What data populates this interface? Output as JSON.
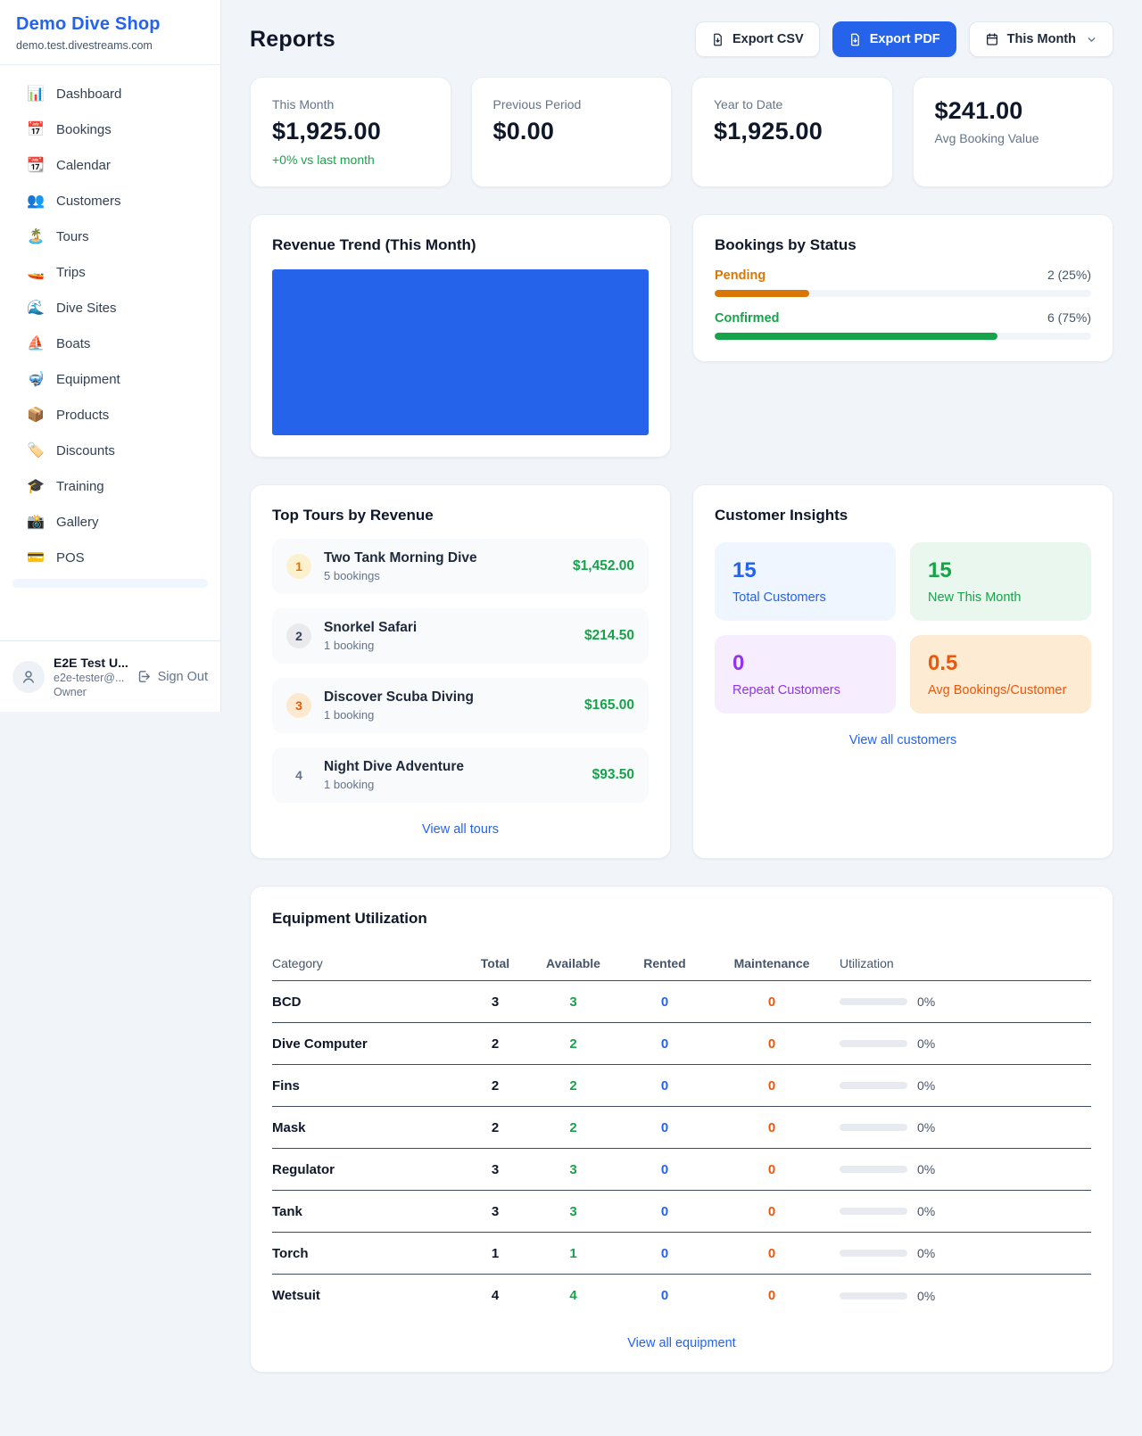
{
  "colors": {
    "accent_blue": "#2563eb",
    "green": "#16a34a",
    "amber": "#d97706",
    "orange": "#ea580c",
    "purple": "#9333ea",
    "page_bg": "#f1f5f9"
  },
  "icons": {
    "export_file": "file-download-icon",
    "period": "calendar-icon",
    "period_chevron": "chevron-down-icon",
    "avatar": "person-icon",
    "signout": "logout-icon"
  },
  "sidebar": {
    "brand": {
      "name": "Demo Dive Shop",
      "domain": "demo.test.divestreams.com"
    },
    "nav": [
      {
        "icon": "📊",
        "label": "Dashboard"
      },
      {
        "icon": "📅",
        "label": "Bookings"
      },
      {
        "icon": "📆",
        "label": "Calendar"
      },
      {
        "icon": "👥",
        "label": "Customers"
      },
      {
        "icon": "🏝️",
        "label": "Tours"
      },
      {
        "icon": "🚤",
        "label": "Trips"
      },
      {
        "icon": "🌊",
        "label": "Dive Sites"
      },
      {
        "icon": "⛵",
        "label": "Boats"
      },
      {
        "icon": "🤿",
        "label": "Equipment"
      },
      {
        "icon": "📦",
        "label": "Products"
      },
      {
        "icon": "🏷️",
        "label": "Discounts"
      },
      {
        "icon": "🎓",
        "label": "Training"
      },
      {
        "icon": "📸",
        "label": "Gallery"
      },
      {
        "icon": "💳",
        "label": "POS"
      }
    ],
    "user": {
      "name": "E2E Test U...",
      "email": "e2e-tester@...",
      "role": "Owner",
      "sign_out": "Sign Out"
    }
  },
  "header": {
    "title": "Reports",
    "export_csv": "Export CSV",
    "export_pdf": "Export PDF",
    "period": "This Month"
  },
  "stats": [
    {
      "label": "This Month",
      "value": "$1,925.00",
      "delta": "+0% vs last month"
    },
    {
      "label": "Previous Period",
      "value": "$0.00"
    },
    {
      "label": "Year to Date",
      "value": "$1,925.00"
    },
    {
      "label": "Avg Booking Value",
      "value": "$241.00"
    }
  ],
  "revenue_trend": {
    "title": "Revenue Trend (This Month)",
    "bar_color": "#2563eb"
  },
  "bookings_by_status": {
    "title": "Bookings by Status",
    "rows": [
      {
        "label": "Pending",
        "count_text": "2 (25%)",
        "count": 2,
        "pct": 25,
        "color": "#d97706"
      },
      {
        "label": "Confirmed",
        "count_text": "6 (75%)",
        "count": 6,
        "pct": 75,
        "color": "#16a34a"
      }
    ]
  },
  "top_tours": {
    "title": "Top Tours by Revenue",
    "rows": [
      {
        "rank": "1",
        "name": "Two Tank Morning Dive",
        "sub": "5 bookings",
        "amount": "$1,452.00"
      },
      {
        "rank": "2",
        "name": "Snorkel Safari",
        "sub": "1 booking",
        "amount": "$214.50"
      },
      {
        "rank": "3",
        "name": "Discover Scuba Diving",
        "sub": "1 booking",
        "amount": "$165.00"
      },
      {
        "rank": "4",
        "name": "Night Dive Adventure",
        "sub": "1 booking",
        "amount": "$93.50"
      }
    ],
    "link": "View all tours"
  },
  "customer_insights": {
    "title": "Customer Insights",
    "tiles": [
      {
        "value": "15",
        "label": "Total Customers",
        "theme": "blue"
      },
      {
        "value": "15",
        "label": "New This Month",
        "theme": "green"
      },
      {
        "value": "0",
        "label": "Repeat Customers",
        "theme": "purple"
      },
      {
        "value": "0.5",
        "label": "Avg Bookings/Customer",
        "theme": "orange"
      }
    ],
    "link": "View all customers"
  },
  "equipment": {
    "title": "Equipment Utilization",
    "headers": [
      "Category",
      "Total",
      "Available",
      "Rented",
      "Maintenance",
      "Utilization"
    ],
    "rows": [
      {
        "category": "BCD",
        "total": "3",
        "available": "3",
        "rented": "0",
        "maintenance": "0",
        "utilization": "0%"
      },
      {
        "category": "Dive Computer",
        "total": "2",
        "available": "2",
        "rented": "0",
        "maintenance": "0",
        "utilization": "0%"
      },
      {
        "category": "Fins",
        "total": "2",
        "available": "2",
        "rented": "0",
        "maintenance": "0",
        "utilization": "0%"
      },
      {
        "category": "Mask",
        "total": "2",
        "available": "2",
        "rented": "0",
        "maintenance": "0",
        "utilization": "0%"
      },
      {
        "category": "Regulator",
        "total": "3",
        "available": "3",
        "rented": "0",
        "maintenance": "0",
        "utilization": "0%"
      },
      {
        "category": "Tank",
        "total": "3",
        "available": "3",
        "rented": "0",
        "maintenance": "0",
        "utilization": "0%"
      },
      {
        "category": "Torch",
        "total": "1",
        "available": "1",
        "rented": "0",
        "maintenance": "0",
        "utilization": "0%"
      },
      {
        "category": "Wetsuit",
        "total": "4",
        "available": "4",
        "rented": "0",
        "maintenance": "0",
        "utilization": "0%"
      }
    ],
    "link": "View all equipment"
  }
}
